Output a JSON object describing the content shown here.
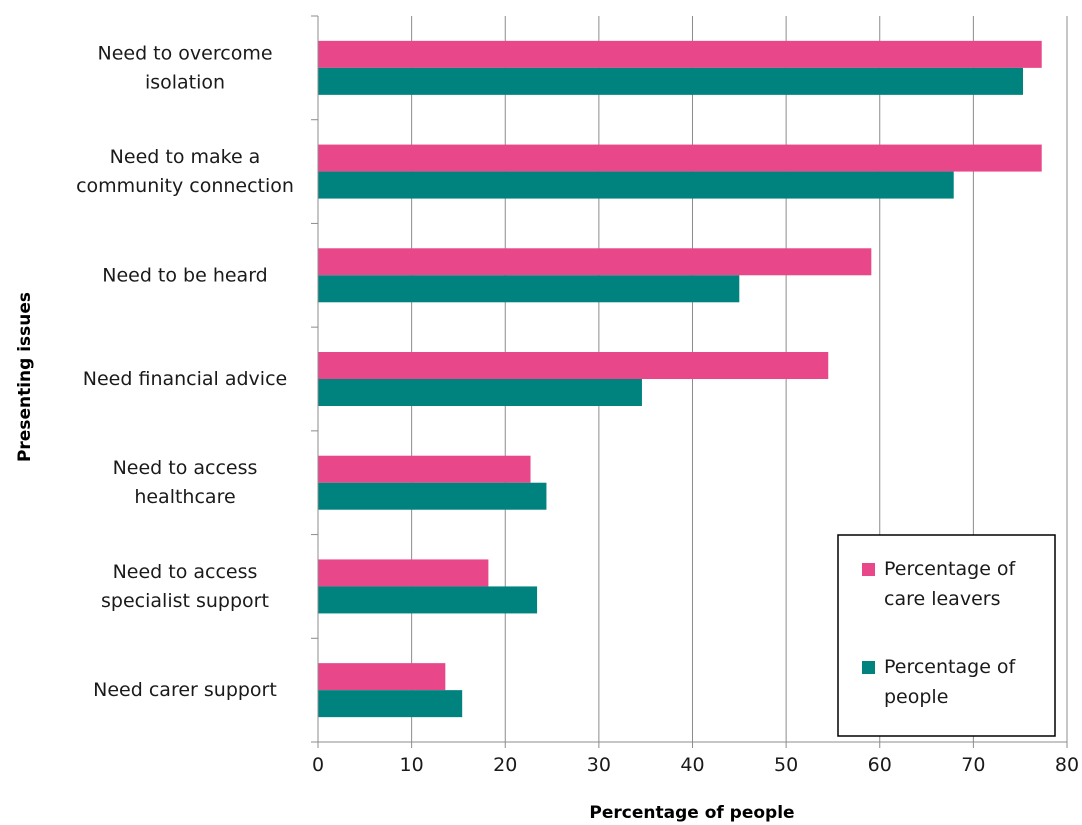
{
  "chart_data": {
    "type": "bar",
    "orientation": "horizontal",
    "categories": [
      [
        "Need to overcome",
        "isolation"
      ],
      [
        "Need to make a",
        "community connection"
      ],
      [
        "Need to be heard"
      ],
      [
        "Need financial advice"
      ],
      [
        "Need to access",
        "healthcare"
      ],
      [
        "Need to access",
        "specialist support"
      ],
      [
        "Need carer support"
      ]
    ],
    "series": [
      {
        "name": [
          "Percentage of",
          "care leavers"
        ],
        "color": "#e8488a",
        "values": [
          77.3,
          77.3,
          59.1,
          54.5,
          22.7,
          18.2,
          13.6
        ]
      },
      {
        "name": [
          "Percentage of",
          "people"
        ],
        "color": "#00827f",
        "values": [
          75.3,
          67.9,
          45.0,
          34.6,
          24.4,
          23.4,
          15.4
        ]
      }
    ],
    "xlabel": "Percentage of people",
    "ylabel": "Presenting issues",
    "xlim": [
      0,
      80
    ],
    "xticks": [
      0,
      10,
      20,
      30,
      40,
      50,
      60,
      70,
      80
    ],
    "grid": "vertical",
    "legend_position": "bottom-right"
  }
}
